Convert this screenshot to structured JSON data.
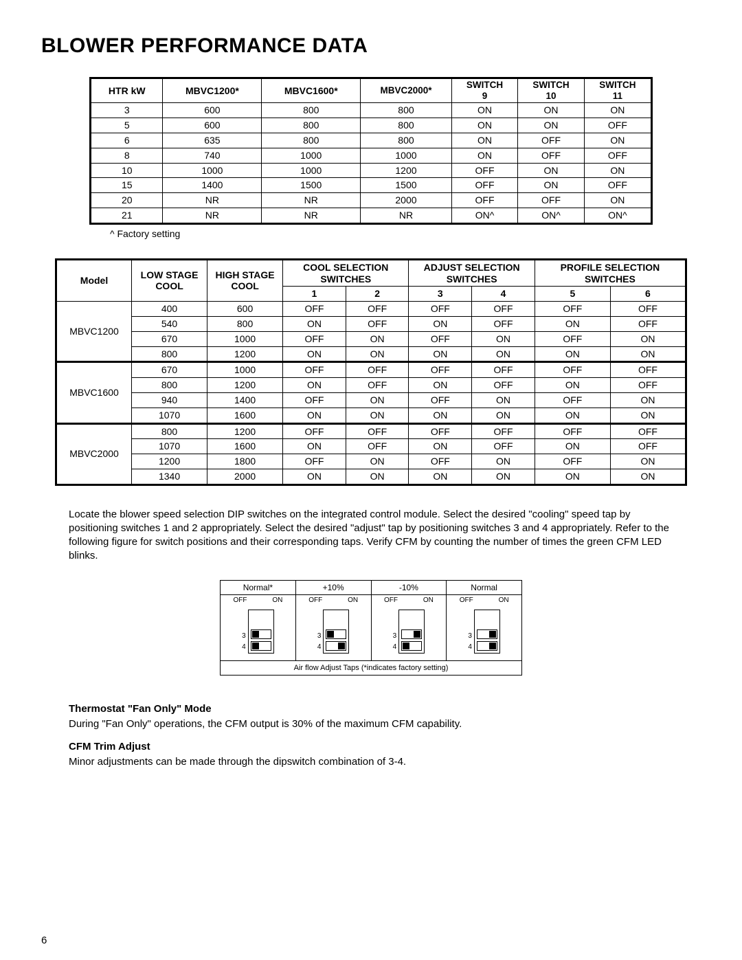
{
  "title": "BLOWER PERFORMANCE DATA",
  "table1": {
    "headers": {
      "c0": "HTR kW",
      "c1": "MBVC1200*",
      "c2": "MBVC1600*",
      "c3": "MBVC2000*",
      "c4a": "SWITCH",
      "c4b": "9",
      "c5a": "SWITCH",
      "c5b": "10",
      "c6a": "SWITCH",
      "c6b": "11"
    },
    "rows": [
      [
        "3",
        "600",
        "800",
        "800",
        "ON",
        "ON",
        "ON"
      ],
      [
        "5",
        "600",
        "800",
        "800",
        "ON",
        "ON",
        "OFF"
      ],
      [
        "6",
        "635",
        "800",
        "800",
        "ON",
        "OFF",
        "ON"
      ],
      [
        "8",
        "740",
        "1000",
        "1000",
        "ON",
        "OFF",
        "OFF"
      ],
      [
        "10",
        "1000",
        "1000",
        "1200",
        "OFF",
        "ON",
        "ON"
      ],
      [
        "15",
        "1400",
        "1500",
        "1500",
        "OFF",
        "ON",
        "OFF"
      ],
      [
        "20",
        "NR",
        "NR",
        "2000",
        "OFF",
        "OFF",
        "ON"
      ],
      [
        "21",
        "NR",
        "NR",
        "NR",
        "ON^",
        "ON^",
        "ON^"
      ]
    ],
    "footnote": "^ Factory setting"
  },
  "table2": {
    "h": {
      "model": "Model",
      "low": "LOW STAGE",
      "lowb": "COOL",
      "high": "HIGH STAGE",
      "highb": "COOL",
      "cool": "COOL SELECTION",
      "coolb": "SWITCHES",
      "adj": "ADJUST SELECTION",
      "adjb": "SWITCHES",
      "prof": "PROFILE SELECTION",
      "profb": "SWITCHES",
      "s1": "1",
      "s2": "2",
      "s3": "3",
      "s4": "4",
      "s5": "5",
      "s6": "6"
    },
    "groups": [
      {
        "model": "MBVC1200",
        "rows": [
          [
            "400",
            "600",
            "OFF",
            "OFF",
            "OFF",
            "OFF",
            "OFF",
            "OFF"
          ],
          [
            "540",
            "800",
            "ON",
            "OFF",
            "ON",
            "OFF",
            "ON",
            "OFF"
          ],
          [
            "670",
            "1000",
            "OFF",
            "ON",
            "OFF",
            "ON",
            "OFF",
            "ON"
          ],
          [
            "800",
            "1200",
            "ON",
            "ON",
            "ON",
            "ON",
            "ON",
            "ON"
          ]
        ]
      },
      {
        "model": "MBVC1600",
        "rows": [
          [
            "670",
            "1000",
            "OFF",
            "OFF",
            "OFF",
            "OFF",
            "OFF",
            "OFF"
          ],
          [
            "800",
            "1200",
            "ON",
            "OFF",
            "ON",
            "OFF",
            "ON",
            "OFF"
          ],
          [
            "940",
            "1400",
            "OFF",
            "ON",
            "OFF",
            "ON",
            "OFF",
            "ON"
          ],
          [
            "1070",
            "1600",
            "ON",
            "ON",
            "ON",
            "ON",
            "ON",
            "ON"
          ]
        ]
      },
      {
        "model": "MBVC2000",
        "rows": [
          [
            "800",
            "1200",
            "OFF",
            "OFF",
            "OFF",
            "OFF",
            "OFF",
            "OFF"
          ],
          [
            "1070",
            "1600",
            "ON",
            "OFF",
            "ON",
            "OFF",
            "ON",
            "OFF"
          ],
          [
            "1200",
            "1800",
            "OFF",
            "ON",
            "OFF",
            "ON",
            "OFF",
            "ON"
          ],
          [
            "1340",
            "2000",
            "ON",
            "ON",
            "ON",
            "ON",
            "ON",
            "ON"
          ]
        ]
      }
    ]
  },
  "para1": "Locate the blower speed selection DIP switches on the integrated control module.  Select the desired \"cooling\" speed tap by positioning switches 1 and 2 appropriately.  Select the desired \"adjust\" tap by positioning switches 3 and 4 appropriately.  Refer to the following figure for switch positions and their corresponding taps.  Verify CFM by counting the number of times the green CFM LED blinks.",
  "dip": {
    "options": [
      {
        "label": "Normal*",
        "s3": "off",
        "s4": "off"
      },
      {
        "label": "+10%",
        "s3": "off",
        "s4": "on"
      },
      {
        "label": "-10%",
        "s3": "on",
        "s4": "off"
      },
      {
        "label": "Normal",
        "s3": "on",
        "s4": "on"
      }
    ],
    "off": "OFF",
    "on": "ON",
    "n3": "3",
    "n4": "4",
    "caption": "Air flow Adjust Taps (*indicates factory setting)"
  },
  "sec1h": "Thermostat \"Fan Only\" Mode",
  "sec1p": "During \"Fan Only\" operations, the CFM output is 30% of the  maximum CFM capability.",
  "sec2h": "CFM Trim Adjust",
  "sec2p": "Minor adjustments can be made through the dipswitch combination of 3-4.",
  "pagenum": "6"
}
